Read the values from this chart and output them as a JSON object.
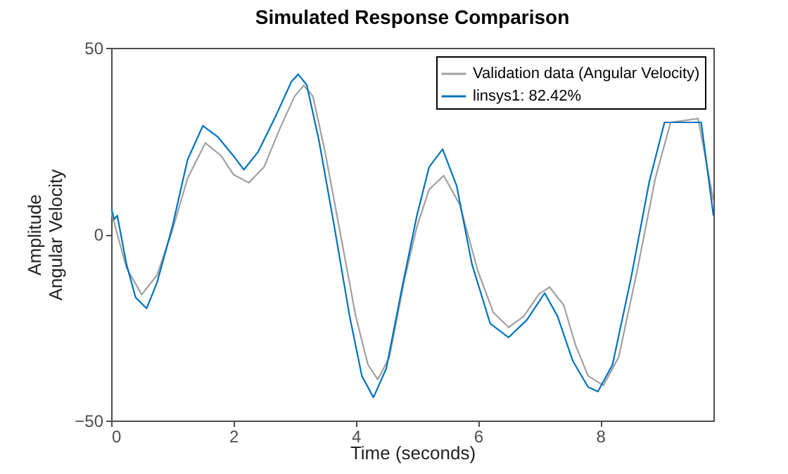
{
  "chart_data": {
    "type": "line",
    "title": "Simulated Response Comparison",
    "xlabel": "Time (seconds)",
    "ylabel": "Amplitude",
    "annotations": [
      "Angular Velocity"
    ],
    "xlim": [
      0,
      9.85
    ],
    "xticks": [
      0,
      2,
      4,
      6,
      8
    ],
    "ylim": [
      -50,
      50
    ],
    "yticks": [
      -50,
      0,
      50
    ],
    "grid": false,
    "legend": "top right",
    "line_style": "solid",
    "series": [
      {
        "name": "Validation data (Angular Velocity)",
        "color": "#a0a0a0",
        "x": [
          0,
          0.1,
          0.25,
          0.5,
          0.75,
          1.0,
          1.25,
          1.54,
          1.8,
          2.0,
          2.25,
          2.5,
          2.75,
          3.0,
          3.15,
          3.3,
          3.5,
          3.75,
          4.0,
          4.2,
          4.36,
          4.55,
          4.8,
          5.0,
          5.2,
          5.44,
          5.7,
          6.0,
          6.25,
          6.5,
          6.75,
          7.0,
          7.17,
          7.4,
          7.6,
          7.8,
          8.05,
          8.3,
          8.6,
          8.9,
          9.15,
          9.6,
          9.85
        ],
        "values": [
          6,
          0,
          -9,
          -16.2,
          -11,
          1,
          15,
          24.5,
          21,
          16,
          13.8,
          18,
          28,
          37,
          39.9,
          37,
          22,
          0,
          -22,
          -35,
          -39,
          -33,
          -12,
          2,
          12,
          15.7,
          8,
          -10,
          -21,
          -25,
          -22,
          -16,
          -14.2,
          -19,
          -30,
          -38,
          -40.6,
          -33,
          -10,
          15,
          30,
          31,
          9
        ]
      },
      {
        "name": "linsys1: 82.42%",
        "color": "#0072bd",
        "x": [
          0,
          0.05,
          0.1,
          0.25,
          0.4,
          0.58,
          0.75,
          1.0,
          1.25,
          1.5,
          1.75,
          2.0,
          2.17,
          2.4,
          2.7,
          2.95,
          3.06,
          3.2,
          3.4,
          3.65,
          3.9,
          4.1,
          4.29,
          4.5,
          4.75,
          5.0,
          5.2,
          5.42,
          5.65,
          5.9,
          6.2,
          6.5,
          6.8,
          7.09,
          7.3,
          7.55,
          7.8,
          7.96,
          8.2,
          8.5,
          8.8,
          9.05,
          9.65,
          9.85
        ],
        "values": [
          7,
          4,
          5,
          -8,
          -17,
          -19.9,
          -13,
          2,
          20,
          29.1,
          26,
          21,
          17.3,
          22,
          32,
          41,
          42.9,
          40,
          25,
          2,
          -22,
          -38,
          -43.8,
          -36,
          -15,
          5,
          18,
          22.8,
          13,
          -8,
          -24,
          -27.7,
          -23,
          -15.8,
          -22,
          -34,
          -41,
          -42.2,
          -35,
          -12,
          14,
          30,
          30,
          5
        ]
      }
    ]
  }
}
